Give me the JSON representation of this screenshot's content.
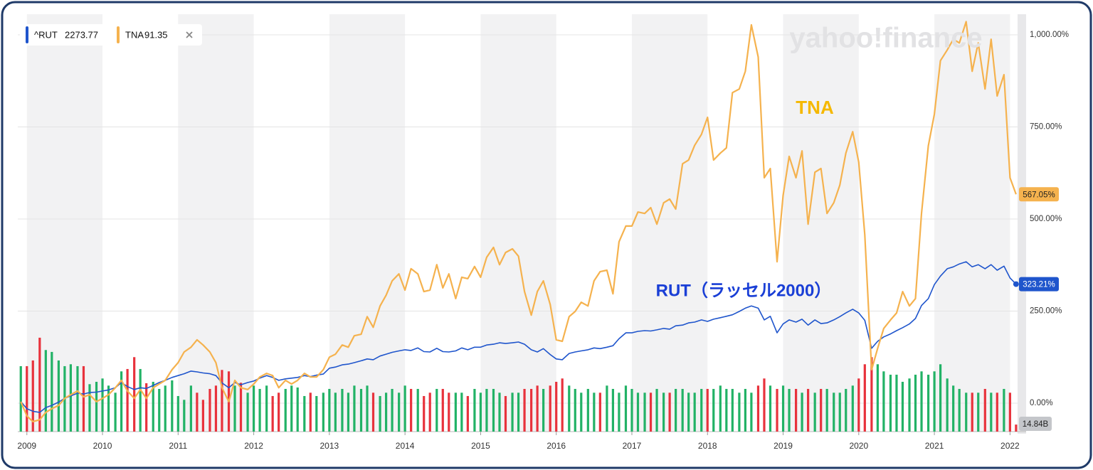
{
  "chart_data": {
    "type": "line",
    "watermark": "yahoo!finance",
    "x": [
      2008.92,
      2009.0,
      2009.08,
      2009.17,
      2009.25,
      2009.33,
      2009.42,
      2009.5,
      2009.58,
      2009.67,
      2009.75,
      2009.83,
      2009.92,
      2010.0,
      2010.08,
      2010.17,
      2010.25,
      2010.33,
      2010.42,
      2010.5,
      2010.58,
      2010.67,
      2010.75,
      2010.83,
      2010.92,
      2011.0,
      2011.08,
      2011.17,
      2011.25,
      2011.33,
      2011.42,
      2011.5,
      2011.58,
      2011.67,
      2011.75,
      2011.83,
      2011.92,
      2012.0,
      2012.08,
      2012.17,
      2012.25,
      2012.33,
      2012.42,
      2012.5,
      2012.58,
      2012.67,
      2012.75,
      2012.83,
      2012.92,
      2013.0,
      2013.08,
      2013.17,
      2013.25,
      2013.33,
      2013.42,
      2013.5,
      2013.58,
      2013.67,
      2013.75,
      2013.83,
      2013.92,
      2014.0,
      2014.08,
      2014.17,
      2014.25,
      2014.33,
      2014.42,
      2014.5,
      2014.58,
      2014.67,
      2014.75,
      2014.83,
      2014.92,
      2015.0,
      2015.08,
      2015.17,
      2015.25,
      2015.33,
      2015.42,
      2015.5,
      2015.58,
      2015.67,
      2015.75,
      2015.83,
      2015.92,
      2016.0,
      2016.08,
      2016.17,
      2016.25,
      2016.33,
      2016.42,
      2016.5,
      2016.58,
      2016.67,
      2016.75,
      2016.83,
      2016.92,
      2017.0,
      2017.08,
      2017.17,
      2017.25,
      2017.33,
      2017.42,
      2017.5,
      2017.58,
      2017.67,
      2017.75,
      2017.83,
      2017.92,
      2018.0,
      2018.08,
      2018.17,
      2018.25,
      2018.33,
      2018.42,
      2018.5,
      2018.58,
      2018.67,
      2018.75,
      2018.83,
      2018.92,
      2019.0,
      2019.08,
      2019.17,
      2019.25,
      2019.33,
      2019.42,
      2019.5,
      2019.58,
      2019.67,
      2019.75,
      2019.83,
      2019.92,
      2020.0,
      2020.08,
      2020.17,
      2020.25,
      2020.33,
      2020.42,
      2020.5,
      2020.58,
      2020.67,
      2020.75,
      2020.83,
      2020.92,
      2021.0,
      2021.08,
      2021.17,
      2021.25,
      2021.33,
      2021.42,
      2021.5,
      2021.58,
      2021.67,
      2021.75,
      2021.83,
      2021.92,
      2022.0,
      2022.08
    ],
    "xlim": [
      2008.88,
      2022.1
    ],
    "xticks": [
      2009,
      2010,
      2011,
      2012,
      2013,
      2014,
      2015,
      2016,
      2017,
      2018,
      2019,
      2020,
      2021,
      2022
    ],
    "ylim": [
      -77.2,
      1056
    ],
    "yticks": [
      {
        "value": 0,
        "label": "0.00%"
      },
      {
        "value": 250,
        "label": "250.00%"
      },
      {
        "value": 500,
        "label": "500.00%"
      },
      {
        "value": 750,
        "label": "750.00%"
      },
      {
        "value": 1000,
        "label": "1,000.00%"
      }
    ],
    "grid": true,
    "series": [
      {
        "name": "^RUT",
        "quote": 2273.77,
        "color": "#1f55cc",
        "last_label": "323.21%",
        "values": [
          4,
          -15,
          -22,
          -25,
          -12,
          -6,
          3,
          13,
          20,
          27,
          25,
          29,
          30,
          33,
          36,
          42,
          56,
          45,
          37,
          42,
          40,
          48,
          56,
          62,
          70,
          75,
          80,
          87,
          85,
          82,
          80,
          75,
          55,
          42,
          56,
          50,
          56,
          60,
          68,
          75,
          70,
          62,
          66,
          68,
          70,
          75,
          72,
          76,
          79,
          95,
          98,
          104,
          106,
          110,
          115,
          120,
          118,
          128,
          133,
          138,
          142,
          145,
          143,
          150,
          140,
          139,
          149,
          140,
          139,
          142,
          150,
          145,
          152,
          152,
          158,
          160,
          164,
          162,
          164,
          166,
          160,
          145,
          139,
          148,
          132,
          120,
          118,
          135,
          139,
          142,
          145,
          150,
          148,
          152,
          156,
          175,
          191,
          191,
          195,
          197,
          196,
          199,
          203,
          201,
          210,
          212,
          218,
          220,
          226,
          222,
          228,
          232,
          236,
          240,
          249,
          258,
          264,
          258,
          226,
          236,
          191,
          215,
          226,
          220,
          228,
          212,
          226,
          216,
          218,
          226,
          235,
          245,
          255,
          245,
          225,
          149,
          168,
          180,
          188,
          197,
          205,
          215,
          230,
          265,
          284,
          322,
          345,
          365,
          370,
          378,
          384,
          370,
          376,
          365,
          376,
          361,
          372,
          340,
          323.21
        ]
      },
      {
        "name": "TNA",
        "quote": 91.35,
        "color": "#f5b24e",
        "last_label": "567.05%",
        "values": [
          4,
          -35,
          -50,
          -45,
          -25,
          -15,
          -6,
          13,
          23,
          33,
          17,
          23,
          4,
          13,
          23,
          42,
          62,
          33,
          13,
          37,
          13,
          42,
          52,
          62,
          91,
          110,
          139,
          152,
          172,
          158,
          139,
          110,
          42,
          4,
          62,
          42,
          37,
          52,
          71,
          81,
          75,
          42,
          62,
          52,
          62,
          81,
          71,
          71,
          91,
          125,
          133,
          158,
          152,
          183,
          187,
          235,
          206,
          264,
          293,
          332,
          351,
          307,
          365,
          351,
          303,
          307,
          376,
          313,
          351,
          284,
          342,
          338,
          371,
          342,
          396,
          423,
          376,
          409,
          419,
          399,
          303,
          239,
          303,
          332,
          268,
          172,
          168,
          235,
          249,
          274,
          264,
          332,
          357,
          361,
          297,
          438,
          481,
          481,
          519,
          515,
          531,
          486,
          544,
          554,
          527,
          650,
          660,
          700,
          730,
          776,
          660,
          679,
          693,
          843,
          853,
          901,
          1027,
          940,
          612,
          637,
          384,
          564,
          670,
          612,
          685,
          486,
          627,
          637,
          515,
          544,
          592,
          679,
          737,
          654,
          457,
          91,
          149,
          203,
          226,
          245,
          303,
          264,
          284,
          515,
          699,
          785,
          930,
          959,
          988,
          978,
          1036,
          901,
          978,
          853,
          988,
          834,
          892,
          612,
          567.05
        ]
      }
    ],
    "volume": {
      "up_color": "#22b266",
      "down_color": "#e8323c",
      "ylim": [
        0,
        220
      ],
      "last_label": "14.84B",
      "values": [
        138,
        138,
        150,
        198,
        172,
        168,
        150,
        138,
        142,
        138,
        138,
        100,
        105,
        112,
        97,
        82,
        127,
        132,
        157,
        132,
        102,
        105,
        90,
        97,
        108,
        75,
        67,
        97,
        82,
        67,
        90,
        97,
        130,
        127,
        97,
        103,
        82,
        97,
        90,
        97,
        75,
        82,
        90,
        97,
        93,
        75,
        82,
        75,
        82,
        90,
        82,
        90,
        82,
        97,
        90,
        97,
        82,
        75,
        82,
        90,
        82,
        97,
        90,
        90,
        75,
        82,
        90,
        90,
        82,
        82,
        82,
        75,
        90,
        82,
        90,
        90,
        82,
        75,
        82,
        82,
        90,
        90,
        97,
        90,
        97,
        105,
        112,
        97,
        90,
        82,
        90,
        82,
        82,
        97,
        90,
        82,
        97,
        90,
        82,
        82,
        82,
        90,
        82,
        82,
        90,
        90,
        82,
        82,
        90,
        90,
        90,
        97,
        90,
        90,
        82,
        90,
        82,
        97,
        112,
        97,
        90,
        97,
        90,
        90,
        82,
        90,
        82,
        90,
        90,
        82,
        82,
        90,
        97,
        112,
        142,
        157,
        142,
        127,
        120,
        120,
        105,
        112,
        120,
        127,
        120,
        127,
        142,
        112,
        97,
        90,
        82,
        82,
        82,
        90,
        82,
        82,
        90,
        82,
        14.84
      ]
    },
    "annotations": [
      {
        "text": "TNA",
        "color": "#f5b800"
      },
      {
        "text": "RUT（ラッセル2000）",
        "color": "#1a3fd6"
      }
    ]
  }
}
